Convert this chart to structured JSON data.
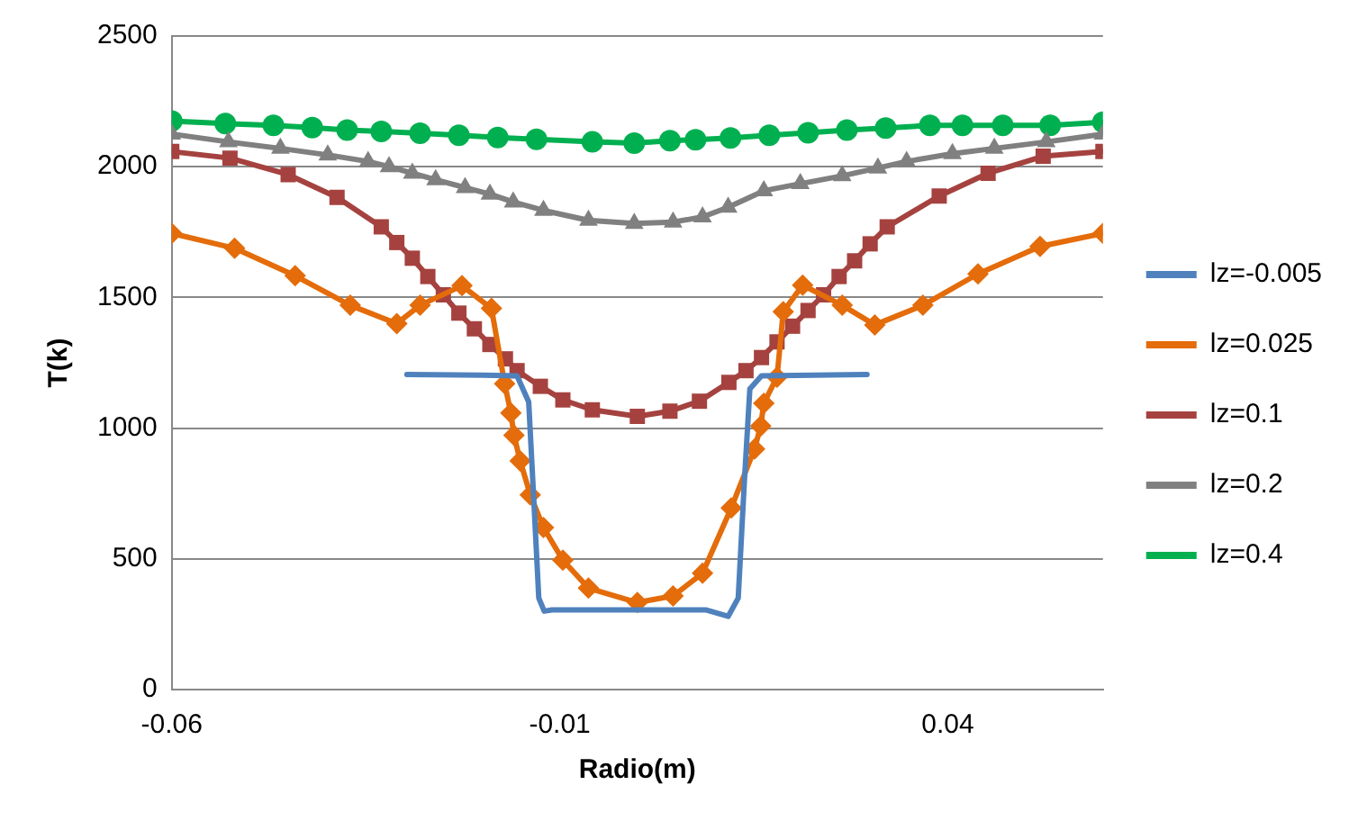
{
  "chart_data": {
    "type": "line",
    "xlabel": "Radio(m)",
    "ylabel": "T(k)",
    "xlim": [
      -0.06,
      0.06
    ],
    "xticks": [
      -0.06,
      -0.01,
      0.04
    ],
    "ylim": [
      0,
      2500
    ],
    "yticks": [
      0,
      500,
      1000,
      1500,
      2000,
      2500
    ],
    "grid": "y",
    "legend": "right",
    "series": [
      {
        "name": "lz=-0.005",
        "color": "#4f81bd",
        "marker": "none",
        "x": [
          -0.0297,
          -0.02,
          -0.0155,
          -0.014,
          -0.0133,
          -0.0127,
          -0.012,
          -0.011,
          0.0,
          0.0088,
          0.0117,
          0.013,
          0.0138,
          0.0145,
          0.016,
          0.0296
        ],
        "values": [
          1205,
          1203,
          1200,
          1100,
          700,
          350,
          300,
          305,
          305,
          305,
          280,
          350,
          800,
          1150,
          1200,
          1205
        ]
      },
      {
        "name": "lz=0.025",
        "color": "#e46c0a",
        "marker": "diamond",
        "x": [
          -0.06,
          -0.0519,
          -0.0441,
          -0.037,
          -0.031,
          -0.028,
          -0.0226,
          -0.0188,
          -0.0171,
          -0.0163,
          -0.0159,
          -0.0151,
          -0.0138,
          -0.0121,
          -0.0096,
          -0.0063,
          0.0,
          0.0046,
          0.0084,
          0.0121,
          0.0151,
          0.0159,
          0.0163,
          0.018,
          0.0188,
          0.0213,
          0.0264,
          0.0306,
          0.0368,
          0.0439,
          0.0519,
          0.06
        ],
        "values": [
          1745,
          1688,
          1583,
          1470,
          1400,
          1470,
          1545,
          1458,
          1170,
          1058,
          973,
          875,
          745,
          620,
          495,
          388,
          333,
          358,
          445,
          695,
          920,
          1008,
          1095,
          1195,
          1445,
          1547,
          1470,
          1395,
          1470,
          1590,
          1695,
          1745
        ]
      },
      {
        "name": "lz=0.1",
        "color": "#a5423f",
        "marker": "square",
        "x": [
          -0.06,
          -0.0525,
          -0.045,
          -0.0387,
          -0.033,
          -0.031,
          -0.029,
          -0.027,
          -0.025,
          -0.023,
          -0.021,
          -0.019,
          -0.017,
          -0.0155,
          -0.0125,
          -0.0096,
          -0.0058,
          0.0,
          0.0042,
          0.008,
          0.0118,
          0.014,
          0.016,
          0.018,
          0.02,
          0.022,
          0.024,
          0.026,
          0.028,
          0.03,
          0.0322,
          0.0389,
          0.0452,
          0.0523,
          0.06
        ],
        "values": [
          2058,
          2033,
          1970,
          1883,
          1770,
          1710,
          1650,
          1580,
          1510,
          1440,
          1380,
          1320,
          1265,
          1220,
          1160,
          1108,
          1070,
          1045,
          1065,
          1103,
          1175,
          1220,
          1270,
          1330,
          1390,
          1450,
          1510,
          1580,
          1640,
          1705,
          1770,
          1888,
          1975,
          2040,
          2058
        ]
      },
      {
        "name": "lz=0.2",
        "color": "#808080",
        "marker": "triangle",
        "x": [
          -0.06,
          -0.0527,
          -0.046,
          -0.0399,
          -0.0347,
          -0.032,
          -0.029,
          -0.026,
          -0.0222,
          -0.019,
          -0.016,
          -0.0121,
          -0.0063,
          -0.0004,
          0.0046,
          0.0084,
          0.0117,
          0.0163,
          0.021,
          0.0264,
          0.031,
          0.0347,
          0.0406,
          0.046,
          0.0527,
          0.06
        ],
        "values": [
          2125,
          2095,
          2070,
          2045,
          2020,
          2000,
          1975,
          1950,
          1920,
          1895,
          1865,
          1833,
          1795,
          1783,
          1788,
          1808,
          1845,
          1908,
          1935,
          1965,
          1995,
          2020,
          2050,
          2070,
          2095,
          2125
        ]
      },
      {
        "name": "lz=0.4",
        "color": "#00b050",
        "marker": "circle",
        "x": [
          -0.06,
          -0.0531,
          -0.0469,
          -0.0419,
          -0.0374,
          -0.033,
          -0.028,
          -0.023,
          -0.018,
          -0.013,
          -0.0058,
          -0.0004,
          0.0042,
          0.0075,
          0.012,
          0.017,
          0.022,
          0.027,
          0.032,
          0.0377,
          0.0419,
          0.0471,
          0.0532,
          0.06
        ],
        "values": [
          2175,
          2165,
          2158,
          2150,
          2140,
          2135,
          2128,
          2120,
          2112,
          2105,
          2095,
          2090,
          2100,
          2103,
          2110,
          2120,
          2130,
          2140,
          2148,
          2158,
          2158,
          2158,
          2158,
          2170
        ]
      }
    ]
  }
}
